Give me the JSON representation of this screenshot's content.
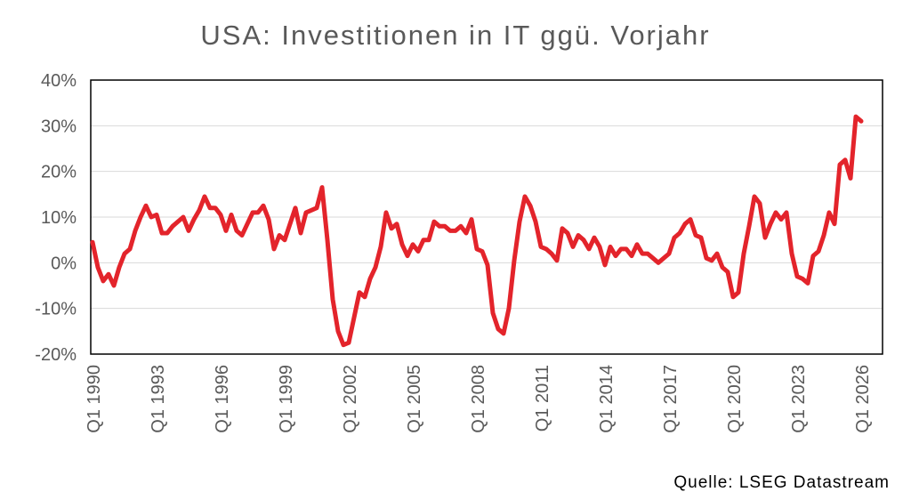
{
  "chart_data": {
    "type": "line",
    "title": "USA: Investitionen in IT ggü. Vorjahr",
    "xlabel": "",
    "ylabel": "",
    "ylim": [
      -20,
      40
    ],
    "y_tick_labels": [
      "40%",
      "30%",
      "20%",
      "10%",
      "0%",
      "-10%",
      "-20%"
    ],
    "x_tick_labels": [
      "Q1 1990",
      "Q1 1993",
      "Q1 1996",
      "Q1 1999",
      "Q1 2002",
      "Q1 2005",
      "Q1 2008",
      "Q1 2011",
      "Q1 2014",
      "Q1 2017",
      "Q1 2020",
      "Q1 2023",
      "Q1 2026"
    ],
    "x_start": "Q1 1990",
    "x_end": "Q1 2026",
    "grid": true,
    "line_color": "#e3242b",
    "series": [
      {
        "values": [
          4.5,
          -1.0,
          -4.0,
          -2.5,
          -5.0,
          -1.0,
          2.0,
          3.0,
          7.0,
          10.0,
          12.5,
          10.0,
          10.5,
          6.5,
          6.5,
          8.0,
          9.0,
          10.0,
          7.0,
          9.5,
          11.5,
          14.5,
          12.0,
          12.0,
          10.5,
          7.0,
          10.5,
          7.0,
          6.0,
          8.5,
          11.0,
          11.0,
          12.5,
          9.5,
          3.0,
          6.0,
          5.0,
          8.5,
          12.0,
          6.5,
          11.0,
          11.5,
          12.0,
          16.5,
          5.0,
          -8.0,
          -15.0,
          -18.0,
          -17.5,
          -12.0,
          -6.5,
          -7.5,
          -3.5,
          -1.0,
          3.5,
          11.0,
          7.5,
          8.5,
          4.0,
          1.5,
          4.0,
          2.5,
          5.0,
          5.0,
          9.0,
          8.0,
          8.0,
          7.0,
          7.0,
          8.0,
          6.5,
          9.5,
          3.0,
          2.5,
          -0.5,
          -11.0,
          -14.5,
          -15.5,
          -10.0,
          0.5,
          9.0,
          14.5,
          12.5,
          9.0,
          3.5,
          3.0,
          2.0,
          0.5,
          7.5,
          6.5,
          3.5,
          6.0,
          5.0,
          3.0,
          5.5,
          3.5,
          -0.5,
          3.5,
          1.5,
          3.0,
          3.0,
          1.5,
          4.0,
          2.0,
          2.0,
          1.0,
          0.0,
          1.0,
          2.0,
          5.5,
          6.5,
          8.5,
          9.5,
          6.0,
          5.5,
          1.0,
          0.5,
          2.0,
          -1.0,
          -2.0,
          -7.5,
          -6.5,
          2.0,
          8.0,
          14.5,
          13.0,
          5.5,
          8.5,
          11.0,
          9.5,
          11.0,
          2.0,
          -3.0,
          -3.5,
          -4.5,
          1.5,
          2.5,
          6.0,
          11.0,
          8.5,
          21.5,
          22.5,
          18.5,
          32.0,
          31.0
        ]
      }
    ]
  },
  "source": "Quelle: LSEG Datastream"
}
